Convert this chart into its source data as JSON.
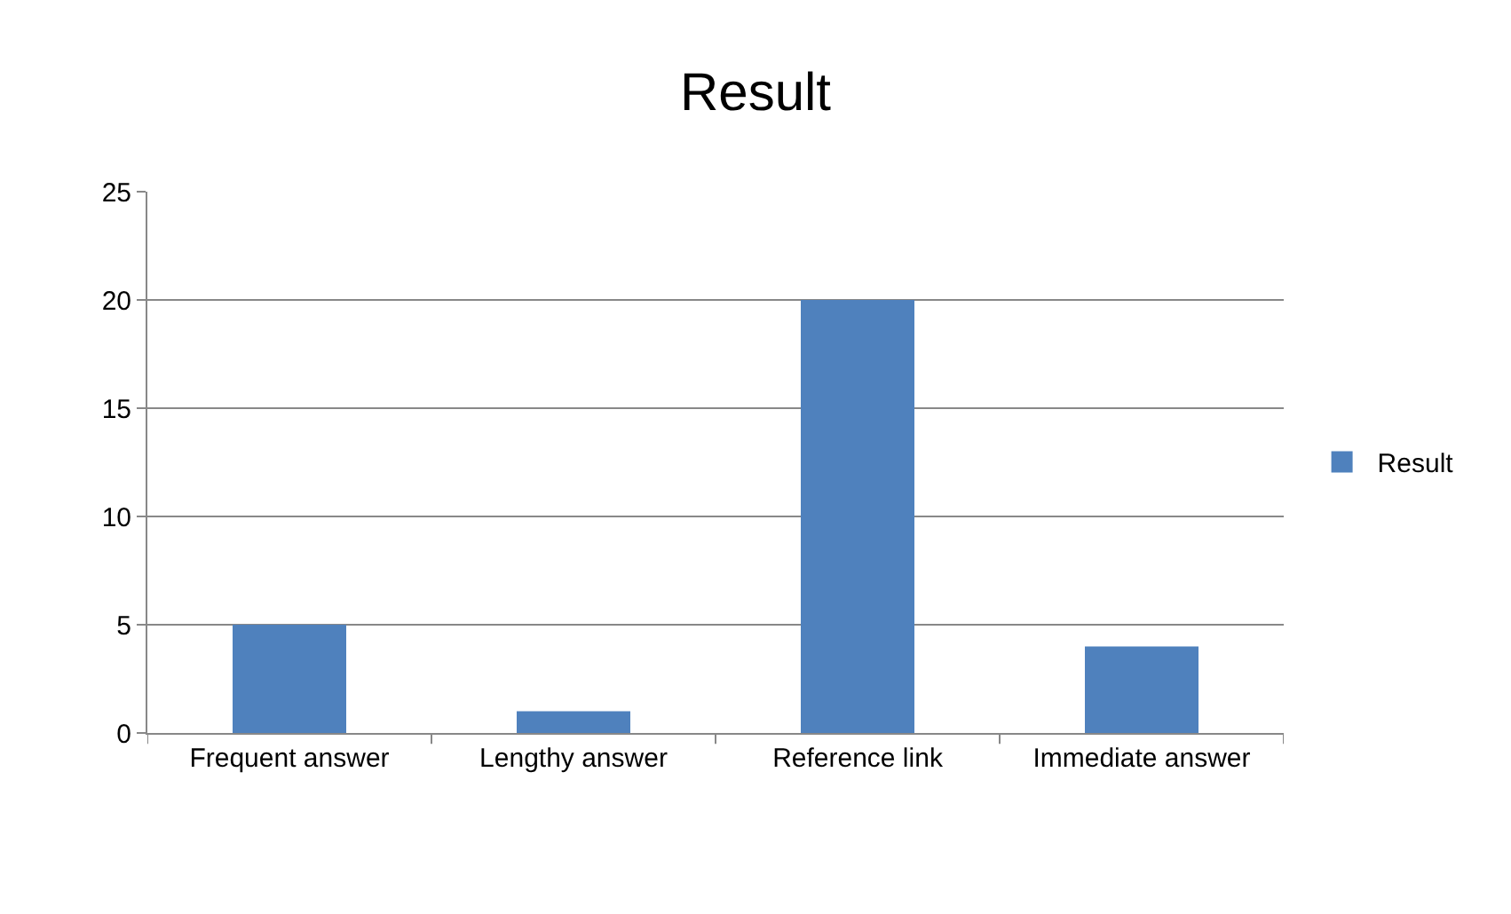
{
  "chart_data": {
    "type": "bar",
    "title": "Result",
    "categories": [
      "Frequent answer",
      "Lengthy answer",
      "Reference link",
      "Immediate answer"
    ],
    "series": [
      {
        "name": "Result",
        "color": "#4f81bd",
        "values": [
          5,
          1,
          20,
          4
        ]
      }
    ],
    "ylim": [
      0,
      25
    ],
    "yticks": [
      0,
      5,
      10,
      15,
      20,
      25
    ],
    "grid": "y",
    "legend": "right"
  }
}
